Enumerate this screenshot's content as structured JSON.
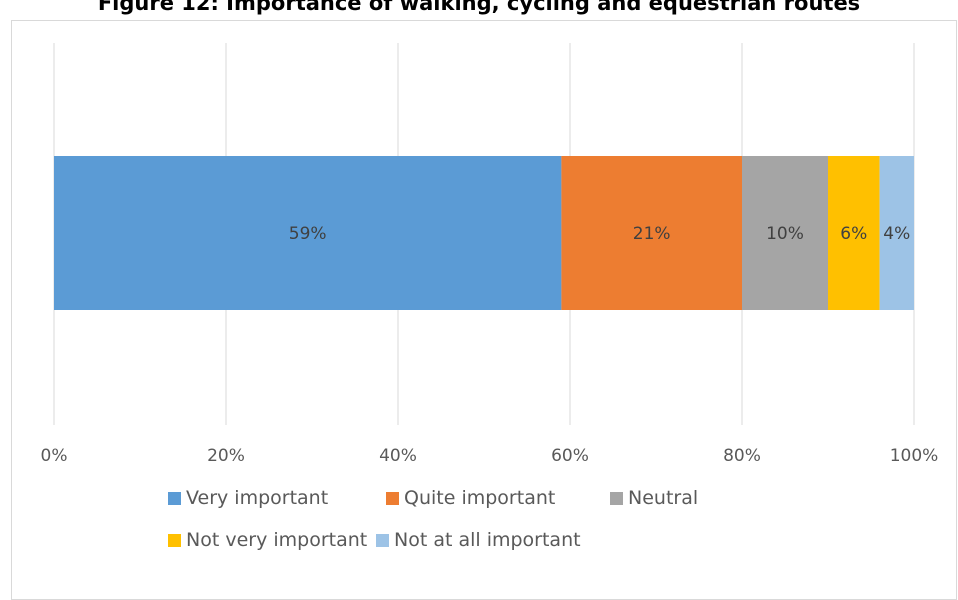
{
  "chart_data": {
    "type": "bar",
    "orientation": "horizontal",
    "stacking": "percent",
    "title": "Figure 12: Importance of walking, cycling and equestrian routes",
    "xlim": [
      0,
      100
    ],
    "xticks": [
      "0%",
      "20%",
      "40%",
      "60%",
      "80%",
      "100%"
    ],
    "categories": [
      ""
    ],
    "grid": true,
    "legend_position": "bottom",
    "series": [
      {
        "name": "Very important",
        "values": [
          59
        ],
        "label": "59%",
        "color": "#5b9bd5",
        "label_color": "#404040"
      },
      {
        "name": "Quite important",
        "values": [
          21
        ],
        "label": "21%",
        "color": "#ed7d31",
        "label_color": "#404040"
      },
      {
        "name": "Neutral",
        "values": [
          10
        ],
        "label": "10%",
        "color": "#a5a5a5",
        "label_color": "#404040"
      },
      {
        "name": "Not very important",
        "values": [
          6
        ],
        "label": "6%",
        "color": "#ffc000",
        "label_color": "#404040"
      },
      {
        "name": "Not at all important",
        "values": [
          4
        ],
        "label": "4%",
        "color": "#9dc3e6",
        "label_color": "#404040"
      }
    ]
  }
}
